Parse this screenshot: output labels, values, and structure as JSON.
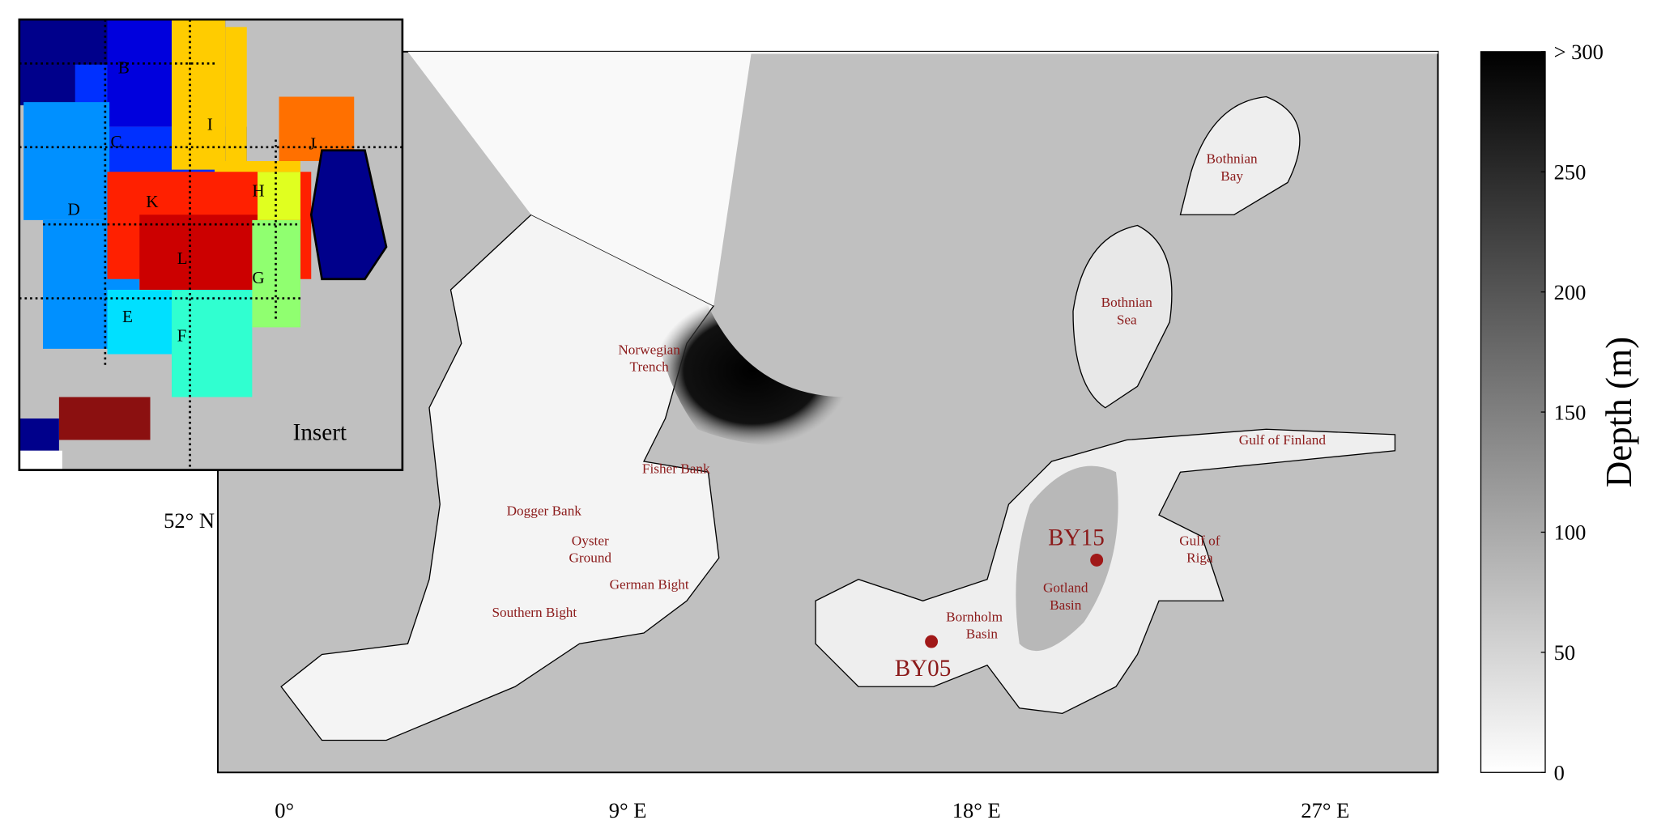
{
  "map": {
    "lon_ticks": [
      "0°",
      "9° E",
      "18° E",
      "27° E"
    ],
    "lat_ticks": [
      "52° N"
    ],
    "sea_labels": {
      "norwegian_trench": [
        "Norwegian",
        "Trench"
      ],
      "fisher_bank": "Fisher Bank",
      "dogger_bank": "Dogger Bank",
      "oyster_ground": [
        "Oyster",
        "Ground"
      ],
      "german_bight": "German Bight",
      "southern_bight": "Southern Bight",
      "bornholm_basin": [
        "Bornholm",
        "Basin"
      ],
      "gotland_basin": [
        "Gotland",
        "Basin"
      ],
      "gulf_of_riga": [
        "Gulf of",
        "Riga"
      ],
      "gulf_of_finland": "Gulf of Finland",
      "bothnian_sea": [
        "Bothnian",
        "Sea"
      ],
      "bothnian_bay": [
        "Bothnian",
        "Bay"
      ]
    },
    "stations": [
      {
        "name": "BY05"
      },
      {
        "name": "BY15"
      }
    ],
    "colors": {
      "land": "#c0c0c0",
      "label": "#8b1a1a",
      "station": "#a01818"
    }
  },
  "colorbar": {
    "label": "Depth (m)",
    "ticks": [
      "0",
      "50",
      "100",
      "150",
      "200",
      "250",
      "> 300"
    ],
    "range": [
      0,
      300
    ],
    "colormap": "white-to-black"
  },
  "insert": {
    "title": "Insert",
    "regions": [
      "B",
      "C",
      "D",
      "E",
      "F",
      "G",
      "H",
      "I",
      "J",
      "K",
      "L"
    ]
  }
}
